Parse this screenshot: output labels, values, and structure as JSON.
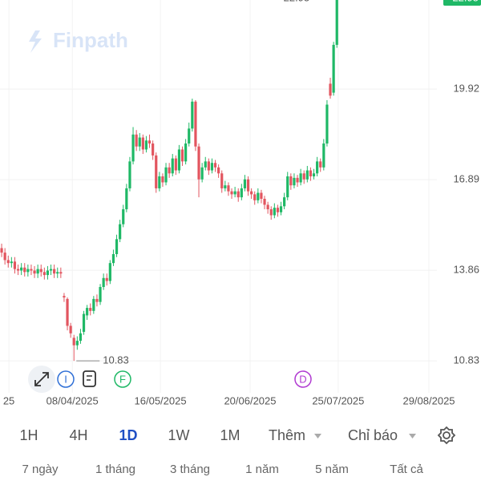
{
  "watermark": "Finpath",
  "chart_data": {
    "type": "candlestick",
    "up_color": "#1fb866",
    "down_color": "#e2555f",
    "open": [
      14.6,
      14.45,
      14.2,
      14.1,
      14.15,
      13.9,
      13.85,
      13.95,
      13.8,
      13.9,
      13.85,
      13.75,
      13.9,
      13.8,
      13.7,
      13.85,
      13.9,
      13.75,
      13.8,
      13.0,
      12.9,
      12.0,
      11.6,
      11.35,
      11.5,
      11.8,
      12.35,
      12.6,
      12.5,
      12.9,
      12.8,
      13.3,
      13.6,
      13.5,
      14.1,
      14.4,
      14.9,
      15.4,
      15.9,
      16.6,
      17.5,
      18.4,
      18.0,
      18.3,
      17.9,
      18.2,
      18.1,
      17.7,
      16.6,
      17.0,
      16.8,
      17.3,
      17.1,
      17.6,
      17.2,
      17.9,
      17.5,
      18.1,
      18.6,
      19.5,
      18.0,
      16.9,
      17.3,
      17.5,
      17.2,
      17.45,
      17.3,
      17.1,
      16.6,
      16.7,
      16.5,
      16.4,
      16.5,
      16.3,
      16.6,
      16.9,
      16.5,
      16.4,
      16.2,
      16.45,
      16.25,
      16.05,
      15.9,
      15.7,
      15.95,
      15.8,
      16.0,
      16.3,
      17.0,
      16.7,
      16.95,
      16.8,
      17.1,
      16.9,
      17.2,
      17.0,
      17.1,
      17.5,
      17.3,
      18.1,
      20.1,
      19.8,
      21.4
    ],
    "high": [
      14.75,
      14.6,
      14.35,
      14.3,
      14.3,
      14.05,
      14.1,
      14.1,
      14.05,
      14.05,
      14.0,
      14.05,
      14.05,
      13.95,
      14.0,
      14.05,
      14.05,
      13.95,
      13.95,
      13.1,
      12.95,
      12.1,
      11.7,
      11.65,
      11.9,
      12.5,
      12.7,
      12.75,
      13.0,
      13.05,
      13.4,
      13.75,
      13.75,
      14.2,
      14.55,
      15.05,
      15.55,
      16.05,
      16.75,
      17.65,
      18.65,
      18.55,
      18.45,
      18.4,
      18.35,
      18.4,
      18.2,
      17.8,
      17.15,
      17.1,
      17.45,
      17.45,
      17.75,
      17.7,
      18.05,
      18.0,
      18.25,
      18.8,
      19.6,
      19.55,
      18.1,
      17.45,
      17.65,
      17.6,
      17.6,
      17.55,
      17.4,
      17.2,
      16.85,
      16.8,
      16.6,
      16.65,
      16.6,
      16.75,
      17.05,
      17.0,
      16.6,
      16.5,
      16.6,
      16.55,
      16.35,
      16.15,
      16.0,
      16.1,
      16.05,
      16.15,
      16.45,
      17.15,
      17.1,
      17.1,
      17.05,
      17.25,
      17.2,
      17.35,
      17.3,
      17.25,
      17.65,
      17.6,
      18.25,
      19.55,
      20.3,
      21.5,
      22.95
    ],
    "low": [
      14.3,
      14.05,
      13.95,
      13.95,
      13.75,
      13.7,
      13.7,
      13.65,
      13.65,
      13.7,
      13.6,
      13.6,
      13.65,
      13.55,
      13.55,
      13.7,
      13.6,
      13.6,
      13.6,
      12.8,
      11.85,
      11.6,
      10.83,
      11.2,
      11.4,
      11.7,
      12.2,
      12.35,
      12.4,
      12.65,
      12.7,
      13.2,
      13.35,
      13.4,
      14.0,
      14.3,
      14.8,
      15.3,
      15.8,
      16.5,
      17.4,
      17.85,
      17.85,
      17.75,
      17.8,
      17.95,
      17.55,
      16.45,
      16.5,
      16.65,
      16.7,
      16.95,
      17.0,
      17.05,
      17.1,
      17.35,
      17.4,
      18.0,
      18.5,
      17.85,
      16.3,
      16.8,
      17.2,
      17.05,
      17.1,
      17.15,
      16.95,
      16.45,
      16.5,
      16.35,
      16.25,
      16.3,
      16.15,
      16.2,
      16.5,
      16.35,
      16.25,
      16.05,
      16.1,
      16.1,
      15.9,
      15.75,
      15.55,
      15.6,
      15.65,
      15.7,
      15.9,
      16.2,
      16.55,
      16.6,
      16.65,
      16.7,
      16.75,
      16.8,
      16.85,
      16.9,
      17.0,
      17.15,
      17.2,
      18.0,
      19.6,
      19.7,
      21.3
    ],
    "close": [
      14.45,
      14.2,
      14.1,
      14.15,
      13.9,
      13.85,
      13.95,
      13.8,
      13.9,
      13.85,
      13.75,
      13.9,
      13.8,
      13.7,
      13.85,
      13.9,
      13.75,
      13.8,
      13.75,
      12.95,
      12.0,
      11.75,
      11.35,
      11.5,
      11.75,
      12.4,
      12.6,
      12.5,
      12.9,
      12.8,
      13.3,
      13.6,
      13.5,
      14.1,
      14.4,
      14.9,
      15.4,
      15.9,
      16.6,
      17.5,
      18.4,
      18.0,
      18.3,
      17.9,
      18.2,
      18.1,
      17.7,
      16.6,
      17.0,
      16.8,
      17.3,
      17.1,
      17.6,
      17.2,
      17.9,
      17.5,
      18.1,
      18.6,
      19.5,
      18.0,
      16.9,
      17.3,
      17.5,
      17.2,
      17.45,
      17.3,
      17.1,
      16.6,
      16.7,
      16.5,
      16.4,
      16.5,
      16.3,
      16.6,
      16.9,
      16.5,
      16.4,
      16.2,
      16.45,
      16.25,
      16.05,
      15.9,
      15.7,
      15.95,
      15.8,
      16.0,
      16.3,
      17.0,
      16.7,
      16.95,
      16.8,
      17.1,
      16.9,
      17.2,
      17.0,
      17.1,
      17.5,
      17.3,
      18.1,
      19.4,
      19.7,
      21.4,
      22.95
    ],
    "xlim": [
      -0.5,
      145.85
    ],
    "xticks": [
      {
        "value": 2.2,
        "label": "25"
      },
      {
        "value": 21.5,
        "label": "08/04/2025"
      },
      {
        "value": 48.3,
        "label": "16/05/2025"
      },
      {
        "value": 75.6,
        "label": "20/06/2025"
      },
      {
        "value": 102.4,
        "label": "25/07/2025"
      },
      {
        "value": 130,
        "label": "29/08/2025"
      }
    ],
    "ylim": [
      9.76,
      22.9
    ],
    "yticks": [
      10.83,
      13.86,
      16.89,
      19.92
    ],
    "grid": true,
    "events": [
      {
        "label": "I",
        "color": "#2f6fd6"
      },
      {
        "label": "F",
        "color": "#1fb866"
      },
      {
        "label": "D",
        "color": "#b03ad1"
      }
    ]
  },
  "toolbar": {
    "timeframes": [
      "1H",
      "4H",
      "1D",
      "1W",
      "1M"
    ],
    "more": "Thêm",
    "indicators": "Chỉ báo",
    "ranges": [
      "7 ngày",
      "1 tháng",
      "3 tháng",
      "1 năm",
      "5 năm",
      "Tất cả"
    ]
  }
}
